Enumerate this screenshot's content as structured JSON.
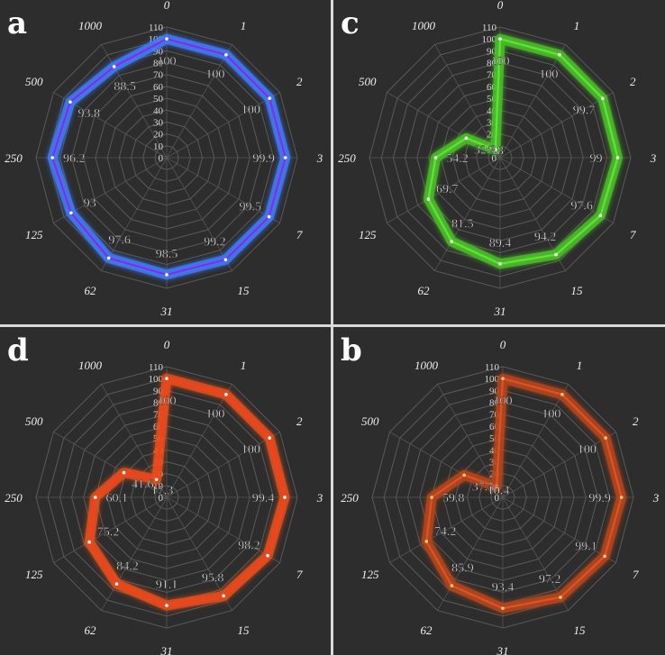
{
  "chart_data": [
    {
      "type": "radar",
      "panel_letter": "a",
      "categories": [
        "0",
        "1",
        "2",
        "3",
        "7",
        "15",
        "31",
        "62",
        "125",
        "250",
        "500",
        "1000"
      ],
      "values": [
        100,
        100,
        100,
        99.9,
        99.5,
        99.2,
        98.5,
        97.6,
        93,
        96.2,
        93.8,
        88.5
      ],
      "rlim": [
        0,
        110
      ],
      "r_ticks": [
        0,
        10,
        20,
        30,
        40,
        50,
        60,
        70,
        80,
        90,
        100,
        110
      ],
      "grid": true,
      "line_color": "#8a2be2",
      "glow_color": "#3d7dff",
      "marker_color": "#ffffff"
    },
    {
      "type": "radar",
      "panel_letter": "c",
      "categories": [
        "0",
        "1",
        "2",
        "3",
        "7",
        "15",
        "31",
        "62",
        "125",
        "250",
        "500",
        "1000"
      ],
      "values": [
        100,
        100,
        99.7,
        99,
        97.6,
        94.2,
        89.4,
        81.5,
        69.7,
        54.2,
        32.9,
        7.8
      ],
      "rlim": [
        0,
        110
      ],
      "r_ticks": [
        0,
        10,
        20,
        30,
        40,
        50,
        60,
        70,
        80,
        90,
        100,
        110
      ],
      "grid": true,
      "line_color": "#58e832",
      "glow_color": "#4cc22a",
      "marker_color": "#ffffff"
    },
    {
      "type": "radar",
      "panel_letter": "d",
      "categories": [
        "0",
        "1",
        "2",
        "3",
        "7",
        "15",
        "31",
        "62",
        "125",
        "250",
        "500",
        "1000"
      ],
      "values": [
        100,
        100,
        100,
        99.4,
        98.2,
        95.8,
        91.1,
        84.2,
        75.2,
        60.1,
        41.6,
        17.3
      ],
      "rlim": [
        0,
        110
      ],
      "r_ticks": [
        0,
        10,
        20,
        30,
        40,
        50,
        60,
        70,
        80,
        90,
        100,
        110
      ],
      "grid": true,
      "line_color": "#ff3b1a",
      "glow_color": "#e8501c",
      "marker_color": "#ffffff"
    },
    {
      "type": "radar",
      "panel_letter": "b",
      "categories": [
        "0",
        "1",
        "2",
        "3",
        "7",
        "15",
        "31",
        "62",
        "125",
        "250",
        "500",
        "1000"
      ],
      "values": [
        100,
        100,
        100,
        99.9,
        99.1,
        97.2,
        93.4,
        85.9,
        74.2,
        59.8,
        37.5,
        10.4
      ],
      "rlim": [
        0,
        110
      ],
      "r_ticks": [
        0,
        10,
        20,
        30,
        40,
        50,
        60,
        70,
        80,
        90,
        100,
        110
      ],
      "grid": true,
      "line_color": "#e0521e",
      "glow_color": "#b8461c",
      "marker_color": "#ffd27a"
    }
  ]
}
